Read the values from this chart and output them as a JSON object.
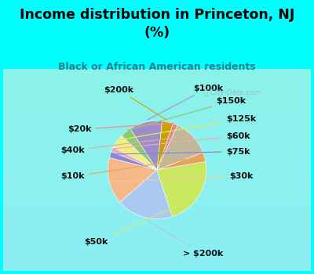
{
  "title": "Income distribution in Princeton, NJ\n(%)",
  "subtitle": "Black or African American residents",
  "labels": [
    "$100k",
    "$150k",
    "$125k",
    "$60k",
    "$75k",
    "$30k",
    "> $200k",
    "$50k",
    "$10k",
    "$40k",
    "$20k",
    "$200k"
  ],
  "sizes": [
    10.5,
    3.5,
    4.5,
    1.5,
    2.0,
    15.0,
    18.0,
    22.0,
    3.0,
    12.0,
    1.5,
    3.5
  ],
  "colors": [
    "#9b8dc8",
    "#90c878",
    "#f0ef80",
    "#f0a8b8",
    "#8888d8",
    "#f5b888",
    "#aac8f0",
    "#c8e860",
    "#e8a060",
    "#c0b898",
    "#f08090",
    "#c8a000"
  ],
  "label_colors": [
    "#000000",
    "#000000",
    "#000000",
    "#000000",
    "#000000",
    "#000000",
    "#000000",
    "#000000",
    "#000000",
    "#000000",
    "#000000",
    "#000000"
  ],
  "line_colors": [
    "#a898d8",
    "#90c878",
    "#e8e860",
    "#f0a8b8",
    "#8888d8",
    "#f5c898",
    "#aac8f0",
    "#d0e870",
    "#e8a868",
    "#c8b8a0",
    "#f09090",
    "#c8a820"
  ],
  "bg_color": "#00ffff",
  "chart_bg": "#d8f0e8",
  "title_color": "#000000",
  "subtitle_color": "#208090",
  "watermark": "City-Data.com",
  "startangle": 84,
  "label_fontsize": 8,
  "title_fontsize": 12.5,
  "subtitle_fontsize": 9
}
